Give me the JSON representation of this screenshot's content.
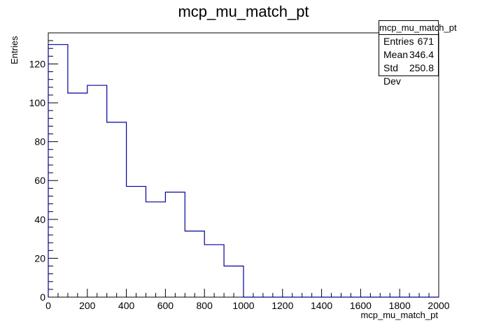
{
  "chart_data": {
    "type": "bar",
    "title": "mcp_mu_match_pt",
    "xlabel": "mcp_mu_match_pt",
    "ylabel": "Entries",
    "bin_edges": [
      0,
      100,
      200,
      300,
      400,
      500,
      600,
      700,
      800,
      900,
      1000,
      1100,
      1200,
      1300,
      1400,
      1500,
      1600,
      1700,
      1800,
      1900,
      2000
    ],
    "values": [
      130,
      105,
      109,
      90,
      57,
      49,
      54,
      34,
      27,
      16,
      0,
      0,
      0,
      0,
      0,
      0,
      0,
      0,
      0,
      0
    ],
    "xlim": [
      0,
      2000
    ],
    "ylim": [
      0,
      136
    ],
    "xticks": [
      "0",
      "200",
      "400",
      "600",
      "800",
      "1000",
      "1200",
      "1400",
      "1600",
      "1800",
      "2000"
    ],
    "yticks": [
      "0",
      "20",
      "40",
      "60",
      "80",
      "100",
      "120"
    ],
    "line_color": "#000099",
    "grid": false,
    "stats": {
      "name": "mcp_mu_match_pt",
      "rows": [
        {
          "label": "Entries",
          "value": "671"
        },
        {
          "label": "Mean",
          "value": "346.4"
        },
        {
          "label": "Std Dev",
          "value": "250.8"
        }
      ]
    }
  }
}
